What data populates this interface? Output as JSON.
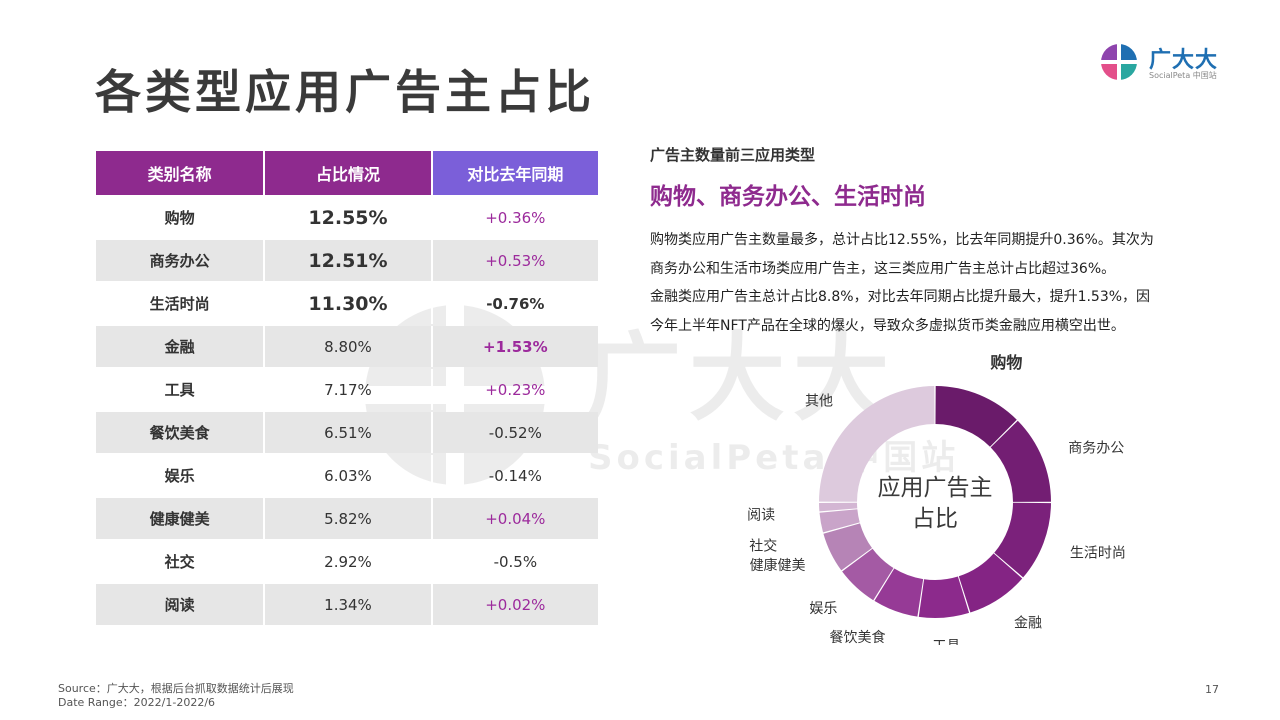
{
  "page": {
    "title": "各类型应用广告主占比",
    "brand_name": "广大大",
    "brand_sub": "SocialPeta 中国站",
    "watermark_main": "广大大",
    "watermark_sub": "SocialPeta 中国站",
    "footer_source": "Source：广大大，根据后台抓取数据统计后展现",
    "footer_range": "Date Range：2022/1-2022/6",
    "page_number": "17"
  },
  "table": {
    "headers": [
      "类别名称",
      "占比情况",
      "对比去年同期"
    ],
    "rows": [
      {
        "category": "购物",
        "share": "12.55%",
        "yoy": "+0.36%"
      },
      {
        "category": "商务办公",
        "share": "12.51%",
        "yoy": "+0.53%"
      },
      {
        "category": "生活时尚",
        "share": "11.30%",
        "yoy": "-0.76%"
      },
      {
        "category": "金融",
        "share": "8.80%",
        "yoy": "+1.53%"
      },
      {
        "category": "工具",
        "share": "7.17%",
        "yoy": "+0.23%"
      },
      {
        "category": "餐饮美食",
        "share": "6.51%",
        "yoy": "-0.52%"
      },
      {
        "category": "娱乐",
        "share": "6.03%",
        "yoy": "-0.14%"
      },
      {
        "category": "健康健美",
        "share": "5.82%",
        "yoy": "+0.04%"
      },
      {
        "category": "社交",
        "share": "2.92%",
        "yoy": "-0.5%"
      },
      {
        "category": "阅读",
        "share": "1.34%",
        "yoy": "+0.02%"
      }
    ]
  },
  "insight": {
    "kicker": "广告主数量前三应用类型",
    "headline": "购物、商务办公、生活时尚",
    "lines": [
      "购物类应用广告主数量最多，总计占比12.55%，比去年同期提升0.36%。其次为",
      "商务办公和生活市场类应用广告主，这三类应用广告主总计占比超过36%。",
      "金融类应用广告主总计占比8.8%，对比去年同期占比提升最大，提升1.53%，因",
      "今年上半年NFT产品在全球的爆火，导致众多虚拟货币类金融应用横空出世。"
    ]
  },
  "colors": {
    "header_purple": "#8e2a8e",
    "header_violet": "#7b5fd9",
    "positive": "#9c2a9c",
    "accent": "#8e2a8e"
  },
  "chart_data": {
    "type": "pie",
    "variant": "donut",
    "center_label": [
      "应用广告主",
      "占比"
    ],
    "slices": [
      {
        "label": "购物",
        "value": 12.55,
        "color": "#6a1b6a"
      },
      {
        "label": "商务办公",
        "value": 12.51,
        "color": "#731e73"
      },
      {
        "label": "生活时尚",
        "value": 11.3,
        "color": "#7b217b"
      },
      {
        "label": "金融",
        "value": 8.8,
        "color": "#842484"
      },
      {
        "label": "工具",
        "value": 7.17,
        "color": "#8c2a8c"
      },
      {
        "label": "餐饮美食",
        "value": 6.51,
        "color": "#963a96"
      },
      {
        "label": "娱乐",
        "value": 6.03,
        "color": "#a45aa4"
      },
      {
        "label": "健康健美",
        "value": 5.82,
        "color": "#b684b6"
      },
      {
        "label": "社交",
        "value": 2.92,
        "color": "#c9a4c9"
      },
      {
        "label": "阅读",
        "value": 1.34,
        "color": "#d3b6d3"
      },
      {
        "label": "其他",
        "value": 25.05,
        "color": "#ddcadd"
      }
    ]
  }
}
